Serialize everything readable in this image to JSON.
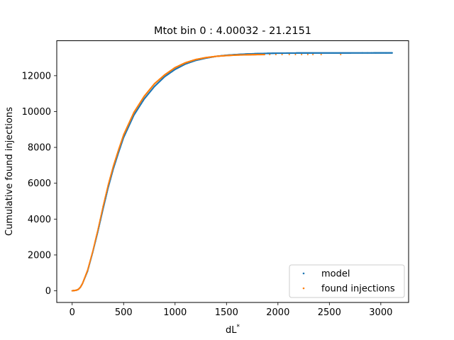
{
  "chart_data": {
    "type": "scatter",
    "title": "Mtot bin 0 : 4.00032 - 21.2151",
    "xlabel": "dL",
    "xlabel_superscript": "*",
    "ylabel": "Cumulative found injections",
    "xlim": [
      -150,
      3270
    ],
    "ylim": [
      -650,
      13950
    ],
    "xticks": [
      0,
      500,
      1000,
      1500,
      2000,
      2500,
      3000
    ],
    "xtick_labels": [
      "0",
      "500",
      "1000",
      "1500",
      "2000",
      "2500",
      "3000"
    ],
    "yticks": [
      0,
      2000,
      4000,
      6000,
      8000,
      10000,
      12000
    ],
    "ytick_labels": [
      "0",
      "2000",
      "4000",
      "6000",
      "8000",
      "10000",
      "12000"
    ],
    "grid": false,
    "legend_placement": "lower-right",
    "total": 13270,
    "series": [
      {
        "name": "model",
        "color": "#1f77b4",
        "curve_x": [
          0,
          40,
          60,
          80,
          100,
          150,
          200,
          250,
          300,
          350,
          400,
          450,
          500,
          600,
          700,
          800,
          900,
          1000,
          1100,
          1200,
          1300,
          1400,
          1500,
          1600,
          1700,
          1800,
          1900,
          2000,
          2200
        ],
        "curve_y": [
          0,
          30,
          80,
          200,
          400,
          1100,
          2150,
          3300,
          4550,
          5750,
          6800,
          7700,
          8550,
          9800,
          10700,
          11400,
          11950,
          12350,
          12650,
          12850,
          12980,
          13080,
          13140,
          13180,
          13210,
          13230,
          13245,
          13255,
          13265
        ],
        "x_end": 3110,
        "tail_x": [
          2820,
          2870,
          2910,
          2950,
          3000,
          3050,
          3110
        ]
      },
      {
        "name": "found injections",
        "color": "#ff7f0e",
        "curve_x": [
          0,
          40,
          60,
          80,
          100,
          150,
          200,
          250,
          300,
          350,
          400,
          450,
          500,
          600,
          700,
          800,
          900,
          1000,
          1100,
          1200,
          1300,
          1400,
          1500,
          1600,
          1700,
          1800,
          1900
        ],
        "curve_y": [
          0,
          30,
          80,
          200,
          400,
          1150,
          2200,
          3400,
          4700,
          5900,
          6950,
          7850,
          8700,
          9950,
          10850,
          11550,
          12050,
          12450,
          12720,
          12900,
          13010,
          13080,
          13120,
          13150,
          13165,
          13175,
          13180
        ],
        "x_end": 1870,
        "tail_x": [
          1920,
          1980,
          2040,
          2110,
          2170,
          2230,
          2290,
          2340,
          2420,
          2610
        ]
      }
    ]
  }
}
